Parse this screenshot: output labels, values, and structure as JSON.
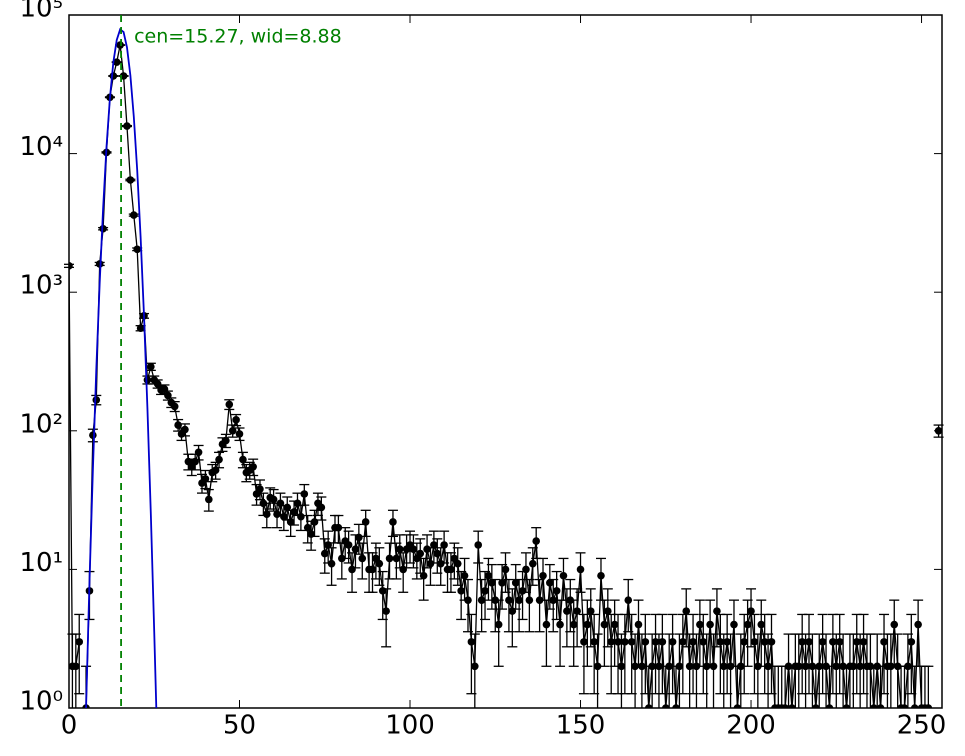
{
  "chart_data": {
    "type": "errorbar",
    "ylog": true,
    "xlim": [
      0,
      256
    ],
    "ylim": [
      1,
      100000
    ],
    "xticks": [
      0,
      50,
      100,
      150,
      200,
      250
    ],
    "yticks": [
      {
        "value": 1,
        "label": "10⁰"
      },
      {
        "value": 10,
        "label": "10¹"
      },
      {
        "value": 100,
        "label": "10²"
      },
      {
        "value": 1000,
        "label": "10³"
      },
      {
        "value": 10000,
        "label": "10⁴"
      },
      {
        "value": 100000,
        "label": "10⁵"
      }
    ],
    "data": {
      "color": "#000000",
      "x": [
        0,
        1,
        2,
        3,
        4,
        5,
        6,
        7,
        8,
        9,
        10,
        11,
        12,
        13,
        14,
        15,
        16,
        17,
        18,
        19,
        20,
        21,
        22,
        23,
        24,
        25,
        26,
        27,
        28,
        29,
        30,
        31,
        32,
        33,
        34,
        35,
        36,
        37,
        38,
        39,
        40,
        41,
        42,
        43,
        44,
        45,
        46,
        47,
        48,
        49,
        50,
        51,
        52,
        53,
        54,
        55,
        56,
        57,
        58,
        59,
        60,
        61,
        62,
        63,
        64,
        65,
        66,
        67,
        68,
        69,
        70,
        71,
        72,
        73,
        74,
        75,
        76,
        77,
        78,
        79,
        80,
        81,
        82,
        83,
        84,
        85,
        86,
        87,
        88,
        89,
        90,
        91,
        92,
        93,
        94,
        95,
        96,
        97,
        98,
        99,
        100,
        101,
        102,
        103,
        104,
        105,
        106,
        107,
        108,
        109,
        110,
        111,
        112,
        113,
        114,
        115,
        116,
        117,
        118,
        119,
        120,
        121,
        122,
        123,
        124,
        125,
        126,
        127,
        128,
        129,
        130,
        131,
        132,
        133,
        134,
        135,
        136,
        137,
        138,
        139,
        140,
        141,
        142,
        143,
        144,
        145,
        146,
        147,
        148,
        149,
        150,
        151,
        152,
        153,
        154,
        155,
        156,
        157,
        158,
        159,
        160,
        161,
        162,
        163,
        164,
        165,
        166,
        167,
        168,
        169,
        170,
        171,
        172,
        173,
        174,
        175,
        176,
        177,
        178,
        179,
        180,
        181,
        182,
        183,
        184,
        185,
        186,
        187,
        188,
        189,
        190,
        191,
        192,
        193,
        194,
        195,
        196,
        197,
        198,
        199,
        200,
        201,
        202,
        203,
        204,
        205,
        206,
        207,
        208,
        209,
        210,
        211,
        212,
        213,
        214,
        215,
        216,
        217,
        218,
        219,
        220,
        221,
        222,
        223,
        224,
        225,
        226,
        227,
        228,
        229,
        230,
        231,
        232,
        233,
        234,
        235,
        236,
        237,
        238,
        239,
        240,
        241,
        242,
        243,
        244,
        245,
        246,
        247,
        248,
        249,
        250,
        251,
        252,
        253,
        254,
        255
      ],
      "values": [
        1550,
        2,
        2,
        3,
        null,
        1,
        7,
        93,
        167,
        1600,
        2870,
        10200,
        25500,
        36300,
        45700,
        60700,
        36300,
        15800,
        6450,
        3600,
        2040,
        550,
        675,
        233,
        290,
        233,
        218,
        197,
        200,
        180,
        160,
        150,
        110,
        95,
        102,
        60,
        55,
        60,
        70,
        42,
        45,
        32,
        50,
        52,
        62,
        80,
        85,
        155,
        100,
        120,
        95,
        62,
        50,
        52,
        55,
        35,
        38,
        30,
        25,
        33,
        32,
        25,
        30,
        24,
        28,
        22,
        26,
        30,
        24,
        35,
        20,
        18,
        22,
        30,
        28,
        13,
        15,
        11,
        20,
        20,
        12,
        16,
        15,
        10,
        14,
        17,
        12,
        22,
        10,
        10,
        12,
        11,
        7,
        5,
        12,
        22,
        12,
        14,
        10,
        14,
        15,
        14,
        12,
        13,
        9,
        14,
        11,
        15,
        13,
        11,
        15,
        10,
        10,
        12,
        11,
        7,
        9,
        6,
        3,
        2,
        15,
        6,
        7,
        9,
        8,
        6,
        4,
        8,
        10,
        6,
        5,
        8,
        6,
        7,
        10,
        6,
        11,
        16,
        6,
        9,
        4,
        8,
        6,
        7,
        4,
        9,
        5,
        6,
        4,
        5,
        10,
        3,
        4,
        5,
        3,
        2,
        9,
        4,
        5,
        3,
        4,
        3,
        2,
        3,
        6,
        3,
        2,
        4,
        2,
        3,
        1,
        2,
        3,
        2,
        3,
        1,
        2,
        3,
        1,
        2,
        3,
        5,
        2,
        3,
        2,
        4,
        3,
        2,
        4,
        2,
        5,
        3,
        2,
        3,
        2,
        4,
        1,
        2,
        3,
        4,
        5,
        3,
        2,
        4,
        3,
        2,
        3,
        1,
        1,
        1,
        1,
        2,
        1,
        2,
        2,
        3,
        2,
        3,
        2,
        1,
        2,
        3,
        2,
        1,
        3,
        2,
        3,
        2,
        1,
        2,
        2,
        3,
        2,
        3,
        2,
        2,
        1,
        2,
        1,
        3,
        2,
        2,
        4,
        2,
        1,
        1,
        2,
        3,
        1,
        4,
        1,
        1,
        1,
        null,
        null,
        100
      ]
    },
    "fit": {
      "color": "#0000cc",
      "x": [
        5,
        6,
        7,
        8,
        9,
        10,
        11,
        12,
        13,
        14,
        15,
        16,
        17,
        18,
        19,
        20,
        21,
        22,
        23,
        24,
        25,
        25.6
      ],
      "values": [
        1,
        8,
        52,
        275,
        1170,
        4000,
        11200,
        25100,
        45500,
        66000,
        78700,
        75400,
        58500,
        36600,
        18500,
        7600,
        2500,
        675,
        145,
        25,
        3.5,
        1
      ]
    },
    "vline": {
      "x": 15.27,
      "color": "#008000"
    },
    "annotation": "cen=15.27, wid=8.88"
  }
}
